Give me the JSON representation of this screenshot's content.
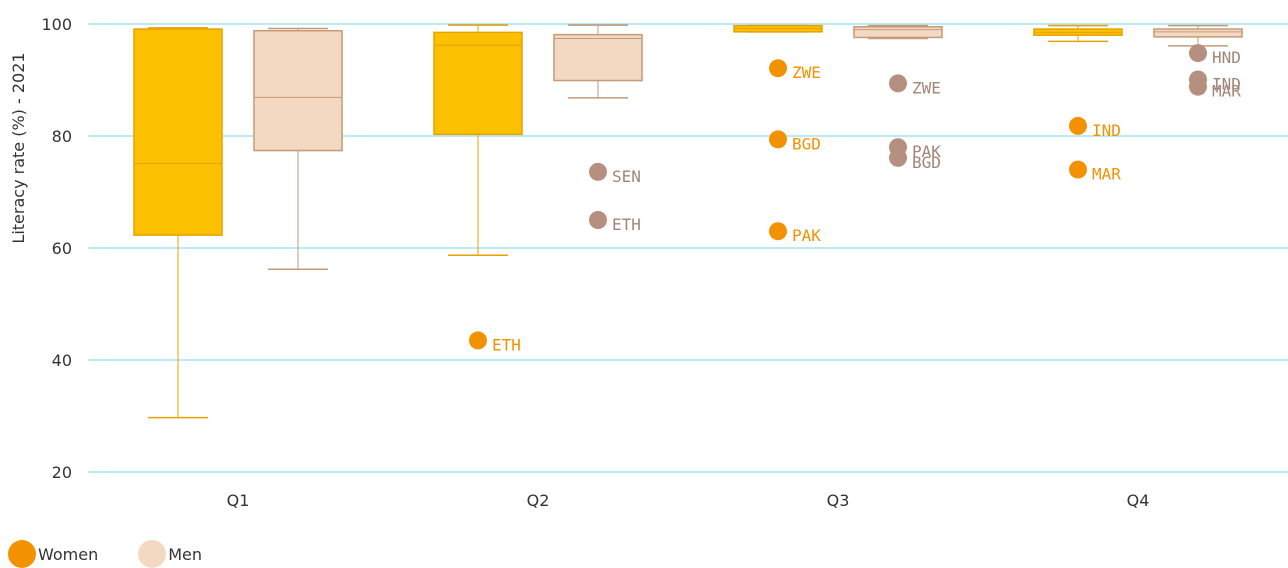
{
  "chart_data": {
    "type": "box",
    "ylabel": "Literacy rate (%) - 2021",
    "ylim": [
      20,
      100
    ],
    "yticks": [
      20,
      40,
      60,
      80,
      100
    ],
    "categories": [
      "Q1",
      "Q2",
      "Q3",
      "Q4"
    ],
    "grid": "horizontal",
    "legend_position": "bottom-left",
    "series": [
      {
        "name": "Women",
        "color": "#FBC000",
        "stroke": "#E8A200",
        "marker_color": "#F39200",
        "label_color": "#F39200",
        "boxes": [
          {
            "category": "Q1",
            "min": 29.7,
            "q1": 62.3,
            "median": 75.1,
            "q3": 99.1,
            "max": 99.3,
            "outliers": []
          },
          {
            "category": "Q2",
            "min": 58.7,
            "q1": 80.3,
            "median": 96.2,
            "q3": 98.5,
            "max": 99.8,
            "outliers": [
              {
                "label": "ETH",
                "value": 43.5
              }
            ]
          },
          {
            "category": "Q3",
            "min": 98.6,
            "q1": 98.6,
            "median": 99.2,
            "q3": 99.7,
            "max": 99.7,
            "outliers": [
              {
                "label": "ZWE",
                "value": 92.1
              },
              {
                "label": "BGD",
                "value": 79.4
              },
              {
                "label": "PAK",
                "value": 63.0
              }
            ]
          },
          {
            "category": "Q4",
            "min": 96.9,
            "q1": 98.0,
            "median": 98.5,
            "q3": 99.1,
            "max": 99.7,
            "outliers": [
              {
                "label": "IND",
                "value": 81.8
              },
              {
                "label": "MAR",
                "value": 74.0
              }
            ]
          }
        ]
      },
      {
        "name": "Men",
        "color": "#F3D9C1",
        "stroke": "#C49A78",
        "marker_color": "#B58F80",
        "label_color": "#A28579",
        "boxes": [
          {
            "category": "Q1",
            "min": 56.2,
            "q1": 77.4,
            "median": 86.9,
            "q3": 98.8,
            "max": 99.2,
            "outliers": []
          },
          {
            "category": "Q2",
            "min": 86.8,
            "q1": 89.9,
            "median": 97.4,
            "q3": 98.1,
            "max": 99.8,
            "outliers": [
              {
                "label": "SEN",
                "value": 73.6
              },
              {
                "label": "ETH",
                "value": 65.0
              }
            ]
          },
          {
            "category": "Q3",
            "min": 97.4,
            "q1": 97.6,
            "median": 99.0,
            "q3": 99.5,
            "max": 99.7,
            "outliers": [
              {
                "label": "ZWE",
                "value": 89.4
              },
              {
                "label": "PAK",
                "value": 78.0
              },
              {
                "label": "BGD",
                "value": 76.1
              }
            ]
          },
          {
            "category": "Q4",
            "min": 96.1,
            "q1": 97.7,
            "median": 98.6,
            "q3": 99.1,
            "max": 99.7,
            "outliers": [
              {
                "label": "HND",
                "value": 94.8
              },
              {
                "label": "IND",
                "value": 90.1
              },
              {
                "label": "MAR",
                "value": 88.8
              }
            ]
          }
        ]
      }
    ]
  },
  "legend": {
    "items": [
      {
        "label": "Women",
        "color": "#F39200"
      },
      {
        "label": "Men",
        "color": "#F3D9C1"
      }
    ]
  }
}
